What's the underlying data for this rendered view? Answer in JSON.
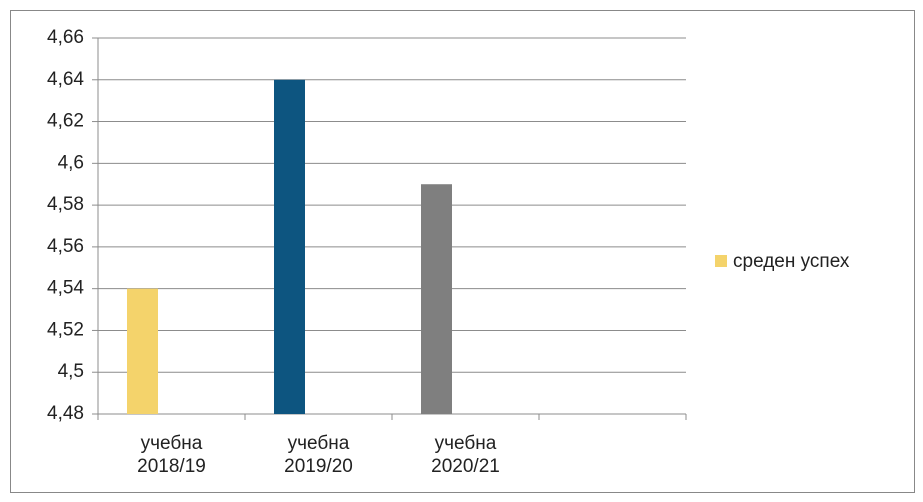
{
  "chart_data": {
    "type": "bar",
    "categories": [
      "учебна 2018/19",
      "учебна 2019/20",
      "учебна 2020/21",
      null
    ],
    "series": [
      {
        "name": "среден успех",
        "colors": [
          "#f4d36b",
          "#0d5580",
          "#7f7f7f",
          null
        ],
        "values": [
          4.54,
          4.64,
          4.59,
          null
        ]
      }
    ],
    "ylim": [
      4.48,
      4.66
    ],
    "yticks": [
      {
        "value": 4.48,
        "label": "4,48"
      },
      {
        "value": 4.5,
        "label": "4,5"
      },
      {
        "value": 4.52,
        "label": "4,52"
      },
      {
        "value": 4.54,
        "label": "4,54"
      },
      {
        "value": 4.56,
        "label": "4,56"
      },
      {
        "value": 4.58,
        "label": "4,58"
      },
      {
        "value": 4.6,
        "label": "4,6"
      },
      {
        "value": 4.62,
        "label": "4,62"
      },
      {
        "value": 4.64,
        "label": "4,64"
      },
      {
        "value": 4.66,
        "label": "4,66"
      }
    ],
    "grid": true,
    "legend": "right"
  }
}
